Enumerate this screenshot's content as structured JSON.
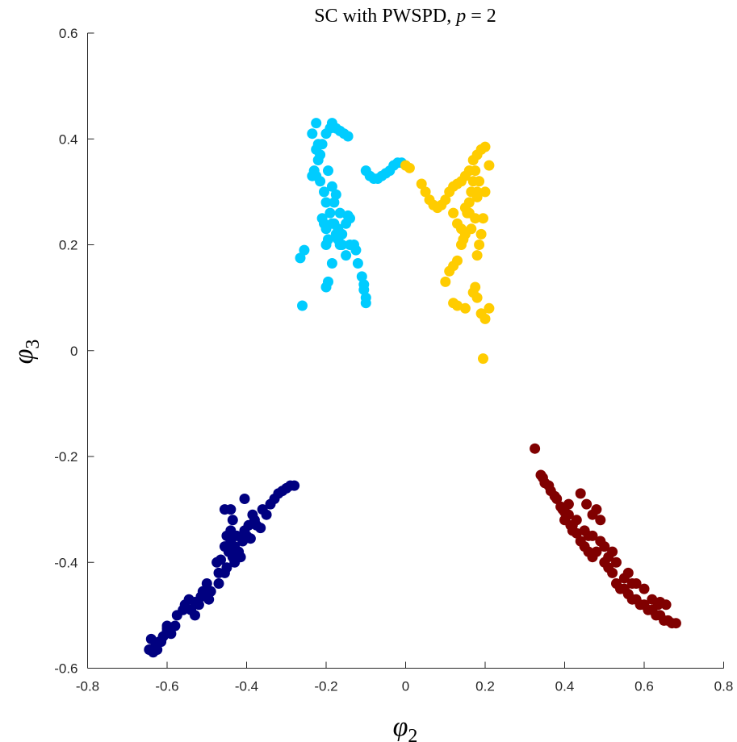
{
  "chart_data": {
    "type": "scatter",
    "title": "SC with PWSPD, p = 2",
    "xlabel": "φ2",
    "ylabel": "φ3",
    "xlim": [
      -0.8,
      0.8
    ],
    "ylim": [
      -0.6,
      0.6
    ],
    "xticks": [
      "-0.8",
      "-0.6",
      "-0.4",
      "-0.2",
      "0",
      "0.2",
      "0.4",
      "0.6",
      "0.8"
    ],
    "yticks": [
      "-0.6",
      "-0.4",
      "-0.2",
      "0",
      "0.2",
      "0.4",
      "0.6"
    ],
    "grid": false,
    "series": [
      {
        "color": "#000080",
        "points": [
          [
            -0.64,
            -0.545
          ],
          [
            -0.63,
            -0.56
          ],
          [
            -0.635,
            -0.57
          ],
          [
            -0.62,
            -0.55
          ],
          [
            -0.61,
            -0.54
          ],
          [
            -0.6,
            -0.525
          ],
          [
            -0.6,
            -0.52
          ],
          [
            -0.59,
            -0.535
          ],
          [
            -0.56,
            -0.49
          ],
          [
            -0.555,
            -0.48
          ],
          [
            -0.545,
            -0.47
          ],
          [
            -0.54,
            -0.49
          ],
          [
            -0.53,
            -0.475
          ],
          [
            -0.52,
            -0.48
          ],
          [
            -0.515,
            -0.465
          ],
          [
            -0.51,
            -0.455
          ],
          [
            -0.5,
            -0.44
          ],
          [
            -0.49,
            -0.455
          ],
          [
            -0.47,
            -0.42
          ],
          [
            -0.475,
            -0.4
          ],
          [
            -0.465,
            -0.395
          ],
          [
            -0.455,
            -0.42
          ],
          [
            -0.45,
            -0.41
          ],
          [
            -0.445,
            -0.38
          ],
          [
            -0.455,
            -0.37
          ],
          [
            -0.44,
            -0.36
          ],
          [
            -0.435,
            -0.39
          ],
          [
            -0.43,
            -0.37
          ],
          [
            -0.425,
            -0.35
          ],
          [
            -0.42,
            -0.38
          ],
          [
            -0.41,
            -0.36
          ],
          [
            -0.405,
            -0.34
          ],
          [
            -0.4,
            -0.35
          ],
          [
            -0.395,
            -0.33
          ],
          [
            -0.39,
            -0.355
          ],
          [
            -0.385,
            -0.31
          ],
          [
            -0.38,
            -0.32
          ],
          [
            -0.375,
            -0.33
          ],
          [
            -0.365,
            -0.335
          ],
          [
            -0.36,
            -0.3
          ],
          [
            -0.35,
            -0.31
          ],
          [
            -0.34,
            -0.29
          ],
          [
            -0.33,
            -0.28
          ],
          [
            -0.32,
            -0.27
          ],
          [
            -0.31,
            -0.265
          ],
          [
            -0.3,
            -0.26
          ],
          [
            -0.29,
            -0.255
          ],
          [
            -0.28,
            -0.255
          ],
          [
            -0.455,
            -0.3
          ],
          [
            -0.44,
            -0.3
          ],
          [
            -0.435,
            -0.32
          ],
          [
            -0.405,
            -0.28
          ],
          [
            -0.43,
            -0.4
          ],
          [
            -0.415,
            -0.39
          ],
          [
            -0.47,
            -0.44
          ],
          [
            -0.495,
            -0.47
          ],
          [
            -0.53,
            -0.5
          ],
          [
            -0.575,
            -0.5
          ],
          [
            -0.58,
            -0.52
          ],
          [
            -0.625,
            -0.565
          ],
          [
            -0.645,
            -0.565
          ],
          [
            -0.615,
            -0.55
          ],
          [
            -0.6,
            -0.53
          ],
          [
            -0.44,
            -0.34
          ],
          [
            -0.45,
            -0.35
          ]
        ]
      },
      {
        "color": "#00CCFF",
        "points": [
          [
            -0.26,
            0.085
          ],
          [
            -0.265,
            0.175
          ],
          [
            -0.255,
            0.19
          ],
          [
            -0.2,
            0.12
          ],
          [
            -0.195,
            0.13
          ],
          [
            -0.185,
            0.165
          ],
          [
            -0.195,
            0.21
          ],
          [
            -0.205,
            0.24
          ],
          [
            -0.21,
            0.25
          ],
          [
            -0.2,
            0.23
          ],
          [
            -0.19,
            0.26
          ],
          [
            -0.18,
            0.28
          ],
          [
            -0.175,
            0.295
          ],
          [
            -0.17,
            0.21
          ],
          [
            -0.165,
            0.2
          ],
          [
            -0.16,
            0.22
          ],
          [
            -0.15,
            0.24
          ],
          [
            -0.145,
            0.255
          ],
          [
            -0.14,
            0.25
          ],
          [
            -0.14,
            0.2
          ],
          [
            -0.13,
            0.2
          ],
          [
            -0.125,
            0.19
          ],
          [
            -0.12,
            0.165
          ],
          [
            -0.11,
            0.14
          ],
          [
            -0.105,
            0.115
          ],
          [
            -0.1,
            0.09
          ],
          [
            -0.1,
            0.1
          ],
          [
            -0.105,
            0.125
          ],
          [
            -0.15,
            0.18
          ],
          [
            -0.16,
            0.2
          ],
          [
            -0.17,
            0.23
          ],
          [
            -0.175,
            0.22
          ],
          [
            -0.185,
            0.24
          ],
          [
            -0.2,
            0.28
          ],
          [
            -0.205,
            0.3
          ],
          [
            -0.215,
            0.32
          ],
          [
            -0.225,
            0.33
          ],
          [
            -0.235,
            0.33
          ],
          [
            -0.23,
            0.34
          ],
          [
            -0.22,
            0.36
          ],
          [
            -0.215,
            0.37
          ],
          [
            -0.225,
            0.38
          ],
          [
            -0.22,
            0.39
          ],
          [
            -0.21,
            0.39
          ],
          [
            -0.2,
            0.41
          ],
          [
            -0.19,
            0.42
          ],
          [
            -0.185,
            0.43
          ],
          [
            -0.175,
            0.42
          ],
          [
            -0.165,
            0.415
          ],
          [
            -0.155,
            0.41
          ],
          [
            -0.145,
            0.405
          ],
          [
            -0.225,
            0.43
          ],
          [
            -0.235,
            0.41
          ],
          [
            -0.1,
            0.34
          ],
          [
            -0.09,
            0.33
          ],
          [
            -0.08,
            0.325
          ],
          [
            -0.07,
            0.325
          ],
          [
            -0.06,
            0.33
          ],
          [
            -0.05,
            0.335
          ],
          [
            -0.04,
            0.34
          ],
          [
            -0.03,
            0.35
          ],
          [
            -0.02,
            0.355
          ],
          [
            -0.01,
            0.355
          ],
          [
            -0.195,
            0.34
          ],
          [
            -0.185,
            0.31
          ],
          [
            -0.2,
            0.2
          ],
          [
            -0.18,
            0.24
          ],
          [
            -0.165,
            0.26
          ]
        ]
      },
      {
        "color": "#FFCC00",
        "points": [
          [
            0.0,
            0.35
          ],
          [
            0.01,
            0.345
          ],
          [
            0.04,
            0.315
          ],
          [
            0.05,
            0.3
          ],
          [
            0.06,
            0.285
          ],
          [
            0.07,
            0.275
          ],
          [
            0.08,
            0.27
          ],
          [
            0.09,
            0.275
          ],
          [
            0.1,
            0.285
          ],
          [
            0.11,
            0.3
          ],
          [
            0.12,
            0.31
          ],
          [
            0.13,
            0.315
          ],
          [
            0.14,
            0.32
          ],
          [
            0.15,
            0.33
          ],
          [
            0.16,
            0.34
          ],
          [
            0.17,
            0.36
          ],
          [
            0.18,
            0.37
          ],
          [
            0.19,
            0.38
          ],
          [
            0.2,
            0.385
          ],
          [
            0.21,
            0.35
          ],
          [
            0.2,
            0.3
          ],
          [
            0.195,
            0.25
          ],
          [
            0.19,
            0.22
          ],
          [
            0.185,
            0.2
          ],
          [
            0.18,
            0.18
          ],
          [
            0.175,
            0.12
          ],
          [
            0.17,
            0.11
          ],
          [
            0.18,
            0.1
          ],
          [
            0.19,
            0.07
          ],
          [
            0.2,
            0.06
          ],
          [
            0.21,
            0.08
          ],
          [
            0.195,
            -0.015
          ],
          [
            0.15,
            0.08
          ],
          [
            0.13,
            0.085
          ],
          [
            0.12,
            0.09
          ],
          [
            0.1,
            0.13
          ],
          [
            0.11,
            0.15
          ],
          [
            0.12,
            0.16
          ],
          [
            0.13,
            0.17
          ],
          [
            0.14,
            0.2
          ],
          [
            0.15,
            0.22
          ],
          [
            0.155,
            0.26
          ],
          [
            0.16,
            0.28
          ],
          [
            0.165,
            0.3
          ],
          [
            0.17,
            0.32
          ],
          [
            0.175,
            0.25
          ],
          [
            0.165,
            0.23
          ],
          [
            0.145,
            0.21
          ],
          [
            0.14,
            0.23
          ],
          [
            0.13,
            0.24
          ],
          [
            0.12,
            0.26
          ],
          [
            0.15,
            0.27
          ],
          [
            0.16,
            0.26
          ],
          [
            0.18,
            0.29
          ],
          [
            0.185,
            0.32
          ],
          [
            0.175,
            0.34
          ],
          [
            0.18,
            0.3
          ]
        ]
      },
      {
        "color": "#800000",
        "points": [
          [
            0.325,
            -0.185
          ],
          [
            0.34,
            -0.235
          ],
          [
            0.345,
            -0.24
          ],
          [
            0.35,
            -0.25
          ],
          [
            0.36,
            -0.255
          ],
          [
            0.365,
            -0.265
          ],
          [
            0.375,
            -0.275
          ],
          [
            0.38,
            -0.28
          ],
          [
            0.39,
            -0.295
          ],
          [
            0.395,
            -0.3
          ],
          [
            0.4,
            -0.305
          ],
          [
            0.41,
            -0.31
          ],
          [
            0.415,
            -0.33
          ],
          [
            0.42,
            -0.34
          ],
          [
            0.43,
            -0.345
          ],
          [
            0.44,
            -0.27
          ],
          [
            0.455,
            -0.29
          ],
          [
            0.47,
            -0.31
          ],
          [
            0.48,
            -0.3
          ],
          [
            0.49,
            -0.32
          ],
          [
            0.44,
            -0.36
          ],
          [
            0.45,
            -0.37
          ],
          [
            0.46,
            -0.38
          ],
          [
            0.47,
            -0.39
          ],
          [
            0.48,
            -0.38
          ],
          [
            0.49,
            -0.36
          ],
          [
            0.5,
            -0.4
          ],
          [
            0.51,
            -0.41
          ],
          [
            0.52,
            -0.42
          ],
          [
            0.53,
            -0.44
          ],
          [
            0.54,
            -0.45
          ],
          [
            0.55,
            -0.45
          ],
          [
            0.56,
            -0.46
          ],
          [
            0.57,
            -0.47
          ],
          [
            0.58,
            -0.47
          ],
          [
            0.59,
            -0.48
          ],
          [
            0.6,
            -0.48
          ],
          [
            0.61,
            -0.49
          ],
          [
            0.62,
            -0.49
          ],
          [
            0.63,
            -0.5
          ],
          [
            0.64,
            -0.5
          ],
          [
            0.65,
            -0.51
          ],
          [
            0.66,
            -0.51
          ],
          [
            0.67,
            -0.515
          ],
          [
            0.68,
            -0.515
          ],
          [
            0.64,
            -0.475
          ],
          [
            0.655,
            -0.48
          ],
          [
            0.62,
            -0.47
          ],
          [
            0.57,
            -0.44
          ],
          [
            0.55,
            -0.43
          ],
          [
            0.53,
            -0.4
          ],
          [
            0.51,
            -0.39
          ],
          [
            0.47,
            -0.35
          ],
          [
            0.45,
            -0.34
          ],
          [
            0.43,
            -0.32
          ],
          [
            0.41,
            -0.29
          ],
          [
            0.4,
            -0.32
          ],
          [
            0.42,
            -0.33
          ],
          [
            0.46,
            -0.35
          ],
          [
            0.5,
            -0.37
          ],
          [
            0.52,
            -0.38
          ],
          [
            0.56,
            -0.42
          ],
          [
            0.58,
            -0.44
          ],
          [
            0.6,
            -0.45
          ],
          [
            0.635,
            -0.48
          ]
        ]
      }
    ]
  }
}
